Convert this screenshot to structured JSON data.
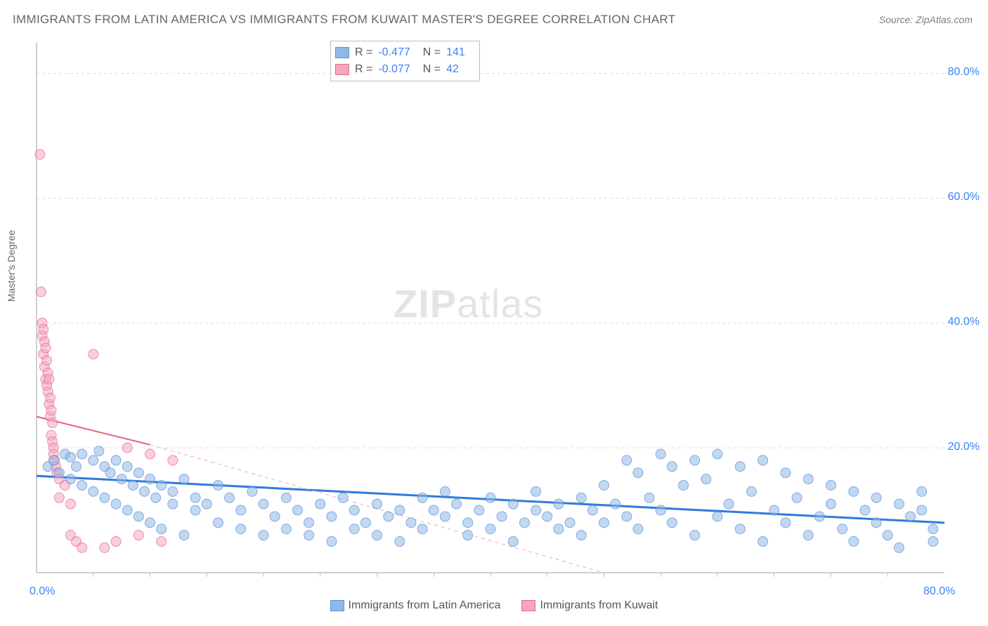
{
  "title": "IMMIGRANTS FROM LATIN AMERICA VS IMMIGRANTS FROM KUWAIT MASTER'S DEGREE CORRELATION CHART",
  "source": "Source: ZipAtlas.com",
  "y_axis_label": "Master's Degree",
  "watermark_bold": "ZIP",
  "watermark_rest": "atlas",
  "stats": {
    "series1": {
      "r_label": "R =",
      "r": "-0.477",
      "n_label": "N =",
      "n": "141"
    },
    "series2": {
      "r_label": "R =",
      "r": "-0.077",
      "n_label": "N =",
      "n": "42"
    }
  },
  "legend": {
    "series1": "Immigrants from Latin America",
    "series2": "Immigrants from Kuwait"
  },
  "chart": {
    "type": "scatter",
    "xlim": [
      0,
      80
    ],
    "ylim": [
      0,
      85
    ],
    "y_ticks": [
      20,
      40,
      60,
      80
    ],
    "y_tick_labels": [
      "20.0%",
      "40.0%",
      "60.0%",
      "80.0%"
    ],
    "x_tick_labels": {
      "min": "0.0%",
      "max": "80.0%"
    },
    "x_minor_ticks": [
      5,
      10,
      15,
      20,
      25,
      30,
      35,
      40,
      45,
      50,
      55,
      60,
      65,
      70,
      75
    ],
    "background_color": "#ffffff",
    "grid_color": "#dddddd",
    "axis_color": "#bfbfbf",
    "marker_radius": 7,
    "marker_opacity": 0.55,
    "series1_color": "#8fb8e8",
    "series1_stroke": "#5a8fd6",
    "series2_color": "#f5a6bd",
    "series2_stroke": "#e06b8f",
    "trend1": {
      "color": "#2f7bd9",
      "width": 3,
      "y_at_x0": 15.5,
      "y_at_xmax": 8.0
    },
    "trend2_solid": {
      "color": "#e85a8a",
      "width": 2,
      "y_at_x0": 25.0,
      "y_at_x10": 20.5
    },
    "trend2_dashed": {
      "color": "#f0a8bf",
      "width": 1,
      "y_at_x10": 20.5,
      "y_at_x50": 0
    },
    "series1_points": [
      [
        1,
        17
      ],
      [
        1.5,
        18
      ],
      [
        2,
        16
      ],
      [
        2.5,
        19
      ],
      [
        3,
        18.5
      ],
      [
        3,
        15
      ],
      [
        3.5,
        17
      ],
      [
        4,
        19
      ],
      [
        4,
        14
      ],
      [
        5,
        18
      ],
      [
        5,
        13
      ],
      [
        5.5,
        19.5
      ],
      [
        6,
        17
      ],
      [
        6,
        12
      ],
      [
        6.5,
        16
      ],
      [
        7,
        18
      ],
      [
        7,
        11
      ],
      [
        7.5,
        15
      ],
      [
        8,
        17
      ],
      [
        8,
        10
      ],
      [
        8.5,
        14
      ],
      [
        9,
        16
      ],
      [
        9,
        9
      ],
      [
        9.5,
        13
      ],
      [
        10,
        15
      ],
      [
        10,
        8
      ],
      [
        10.5,
        12
      ],
      [
        11,
        14
      ],
      [
        11,
        7
      ],
      [
        12,
        13
      ],
      [
        12,
        11
      ],
      [
        13,
        15
      ],
      [
        13,
        6
      ],
      [
        14,
        12
      ],
      [
        14,
        10
      ],
      [
        15,
        11
      ],
      [
        16,
        14
      ],
      [
        16,
        8
      ],
      [
        17,
        12
      ],
      [
        18,
        10
      ],
      [
        18,
        7
      ],
      [
        19,
        13
      ],
      [
        20,
        11
      ],
      [
        20,
        6
      ],
      [
        21,
        9
      ],
      [
        22,
        12
      ],
      [
        22,
        7
      ],
      [
        23,
        10
      ],
      [
        24,
        8
      ],
      [
        24,
        6
      ],
      [
        25,
        11
      ],
      [
        26,
        9
      ],
      [
        26,
        5
      ],
      [
        27,
        12
      ],
      [
        28,
        10
      ],
      [
        28,
        7
      ],
      [
        29,
        8
      ],
      [
        30,
        11
      ],
      [
        30,
        6
      ],
      [
        31,
        9
      ],
      [
        32,
        10
      ],
      [
        32,
        5
      ],
      [
        33,
        8
      ],
      [
        34,
        12
      ],
      [
        34,
        7
      ],
      [
        35,
        10
      ],
      [
        36,
        9
      ],
      [
        36,
        13
      ],
      [
        37,
        11
      ],
      [
        38,
        8
      ],
      [
        38,
        6
      ],
      [
        39,
        10
      ],
      [
        40,
        12
      ],
      [
        40,
        7
      ],
      [
        41,
        9
      ],
      [
        42,
        11
      ],
      [
        42,
        5
      ],
      [
        43,
        8
      ],
      [
        44,
        10
      ],
      [
        44,
        13
      ],
      [
        45,
        9
      ],
      [
        46,
        11
      ],
      [
        46,
        7
      ],
      [
        47,
        8
      ],
      [
        48,
        12
      ],
      [
        48,
        6
      ],
      [
        49,
        10
      ],
      [
        50,
        14
      ],
      [
        50,
        8
      ],
      [
        51,
        11
      ],
      [
        52,
        18
      ],
      [
        52,
        9
      ],
      [
        53,
        16
      ],
      [
        53,
        7
      ],
      [
        54,
        12
      ],
      [
        55,
        19
      ],
      [
        55,
        10
      ],
      [
        56,
        17
      ],
      [
        56,
        8
      ],
      [
        57,
        14
      ],
      [
        58,
        18
      ],
      [
        58,
        6
      ],
      [
        59,
        15
      ],
      [
        60,
        19
      ],
      [
        60,
        9
      ],
      [
        61,
        11
      ],
      [
        62,
        17
      ],
      [
        62,
        7
      ],
      [
        63,
        13
      ],
      [
        64,
        18
      ],
      [
        64,
        5
      ],
      [
        65,
        10
      ],
      [
        66,
        16
      ],
      [
        66,
        8
      ],
      [
        67,
        12
      ],
      [
        68,
        15
      ],
      [
        68,
        6
      ],
      [
        69,
        9
      ],
      [
        70,
        14
      ],
      [
        70,
        11
      ],
      [
        71,
        7
      ],
      [
        72,
        13
      ],
      [
        72,
        5
      ],
      [
        73,
        10
      ],
      [
        74,
        12
      ],
      [
        74,
        8
      ],
      [
        75,
        6
      ],
      [
        76,
        11
      ],
      [
        76,
        4
      ],
      [
        77,
        9
      ],
      [
        78,
        10
      ],
      [
        78,
        13
      ],
      [
        79,
        7
      ],
      [
        79,
        5
      ]
    ],
    "series2_points": [
      [
        0.3,
        67
      ],
      [
        0.4,
        45
      ],
      [
        0.5,
        40
      ],
      [
        0.5,
        38
      ],
      [
        0.6,
        39
      ],
      [
        0.6,
        35
      ],
      [
        0.7,
        37
      ],
      [
        0.7,
        33
      ],
      [
        0.8,
        36
      ],
      [
        0.8,
        31
      ],
      [
        0.9,
        34
      ],
      [
        0.9,
        30
      ],
      [
        1,
        32
      ],
      [
        1,
        29
      ],
      [
        1.1,
        31
      ],
      [
        1.1,
        27
      ],
      [
        1.2,
        28
      ],
      [
        1.2,
        25
      ],
      [
        1.3,
        26
      ],
      [
        1.3,
        22
      ],
      [
        1.4,
        24
      ],
      [
        1.4,
        21
      ],
      [
        1.5,
        20
      ],
      [
        1.5,
        19
      ],
      [
        1.6,
        18
      ],
      [
        1.7,
        17
      ],
      [
        1.8,
        16
      ],
      [
        2,
        15
      ],
      [
        2,
        12
      ],
      [
        2.5,
        14
      ],
      [
        3,
        11
      ],
      [
        3,
        6
      ],
      [
        3.5,
        5
      ],
      [
        4,
        4
      ],
      [
        5,
        35
      ],
      [
        6,
        4
      ],
      [
        7,
        5
      ],
      [
        8,
        20
      ],
      [
        9,
        6
      ],
      [
        10,
        19
      ],
      [
        11,
        5
      ],
      [
        12,
        18
      ]
    ]
  }
}
